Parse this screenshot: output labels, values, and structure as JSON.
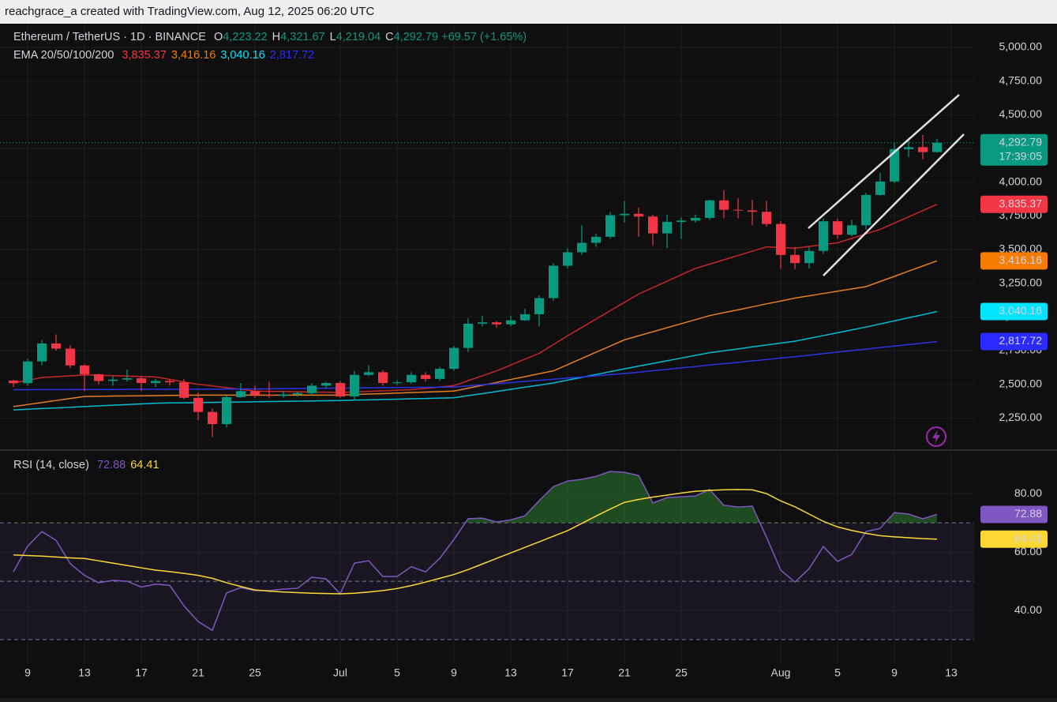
{
  "header": {
    "title": "reachgrace_a created with TradingView.com, Aug 12, 2025 06:20 UTC"
  },
  "chart_data": [
    {
      "type": "candlestick",
      "symbol": "Ethereum / TetherUS · 1D · BINANCE",
      "ohlc_legend": [
        {
          "key": "O",
          "text": "4,223.22"
        },
        {
          "key": "H",
          "text": "4,321.67"
        },
        {
          "key": "L",
          "text": "4,219.04"
        },
        {
          "key": "C",
          "text": "4,292.79"
        }
      ],
      "change": "+69.57 (+1.65%)",
      "countdown": "17:39:05",
      "categories": [
        null,
        "9",
        null,
        null,
        null,
        "13",
        null,
        null,
        null,
        "17",
        null,
        null,
        null,
        "21",
        null,
        null,
        null,
        "25",
        null,
        null,
        null,
        null,
        null,
        "Jul",
        null,
        null,
        null,
        "5",
        null,
        null,
        null,
        "9",
        null,
        null,
        null,
        "13",
        null,
        null,
        null,
        "17",
        null,
        null,
        null,
        "21",
        null,
        null,
        null,
        "25",
        null,
        null,
        null,
        null,
        null,
        null,
        "Aug",
        null,
        null,
        null,
        "5",
        null,
        null,
        null,
        "9",
        null,
        null,
        null,
        "13"
      ],
      "open": [
        2528,
        2509,
        2670,
        2803,
        2765,
        2640,
        2575,
        2525,
        2535,
        2545,
        2510,
        2525,
        2515,
        2400,
        2295,
        2205,
        2405,
        2450,
        2420,
        2415,
        2425,
        2435,
        2490,
        2510,
        2410,
        2570,
        2590,
        2510,
        2515,
        2570,
        2540,
        2615,
        2770,
        2950,
        2960,
        2945,
        2975,
        3020,
        3140,
        3380,
        3480,
        3550,
        3595,
        3755,
        3765,
        3745,
        3620,
        3705,
        3715,
        3735,
        3865,
        3795,
        3790,
        3780,
        3690,
        3460,
        3400,
        3490,
        3710,
        3610,
        3680,
        3905,
        4005,
        4245,
        4260,
        4223.22,
        null
      ],
      "high": [
        2535,
        2690,
        2827,
        2870,
        2790,
        2650,
        2580,
        2560,
        2610,
        2560,
        2540,
        2535,
        2540,
        2440,
        2320,
        2415,
        2510,
        2490,
        2520,
        2450,
        2445,
        2510,
        2520,
        2525,
        2600,
        2640,
        2605,
        2530,
        2590,
        2590,
        2630,
        2785,
        2990,
        3010,
        2970,
        3010,
        3060,
        3160,
        3400,
        3510,
        3680,
        3620,
        3780,
        3860,
        3810,
        3760,
        3760,
        3740,
        3760,
        3870,
        3940,
        3880,
        3870,
        3860,
        3710,
        3520,
        3520,
        3730,
        3730,
        3720,
        3920,
        4070,
        4290,
        4330,
        4350,
        4321.67,
        null
      ],
      "low": [
        2480,
        2490,
        2640,
        2750,
        2620,
        2450,
        2500,
        2490,
        2520,
        2450,
        2480,
        2490,
        2390,
        2235,
        2110,
        2180,
        2400,
        2400,
        2400,
        2400,
        2410,
        2420,
        2470,
        2400,
        2380,
        2560,
        2490,
        2495,
        2505,
        2520,
        2525,
        2600,
        2740,
        2930,
        2920,
        2930,
        2970,
        2930,
        3120,
        3360,
        3460,
        3520,
        3580,
        3700,
        3595,
        3530,
        3510,
        3580,
        3700,
        3720,
        3730,
        3730,
        3680,
        3670,
        3355,
        3355,
        3360,
        3470,
        3580,
        3600,
        3650,
        3900,
        3990,
        4185,
        4170,
        4219.04,
        null
      ],
      "close": [
        2509,
        2670,
        2803,
        2765,
        2640,
        2575,
        2525,
        2535,
        2545,
        2510,
        2525,
        2515,
        2400,
        2295,
        2205,
        2405,
        2450,
        2420,
        2415,
        2425,
        2435,
        2490,
        2510,
        2410,
        2570,
        2590,
        2510,
        2515,
        2570,
        2540,
        2615,
        2770,
        2950,
        2960,
        2945,
        2975,
        3020,
        3140,
        3380,
        3480,
        3550,
        3595,
        3755,
        3765,
        3745,
        3620,
        3705,
        3715,
        3735,
        3865,
        3795,
        3790,
        3780,
        3690,
        3460,
        3400,
        3490,
        3710,
        3610,
        3680,
        3905,
        4005,
        4245,
        4260,
        4223.22,
        4292.79,
        null
      ],
      "up_color": "#089981",
      "down_color": "#f23645",
      "indicator": "EMA 20/50/100/200",
      "series": [
        {
          "color": "#c62828",
          "badge_color": "#f23645",
          "last_label": "3,835.37",
          "values": [
            2510,
            2530,
            2550,
            2557,
            2563,
            2570,
            2567,
            2564,
            2561,
            2558,
            2555,
            2537,
            2518,
            2500,
            2488,
            2475,
            2463,
            2450,
            2448,
            2447,
            2445,
            2443,
            2442,
            2440,
            2444,
            2448,
            2452,
            2456,
            2460,
            2470,
            2480,
            2490,
            2527,
            2563,
            2600,
            2643,
            2687,
            2730,
            2795,
            2860,
            2922,
            2984,
            3046,
            3108,
            3170,
            3218,
            3265,
            3313,
            3360,
            3392,
            3424,
            3456,
            3488,
            3520,
            3515,
            3510,
            3523,
            3537,
            3550,
            3583,
            3617,
            3650,
            3696,
            3743,
            3789,
            3835.37,
            null
          ]
        },
        {
          "color": "#e67e22",
          "badge_color": "#f57c00",
          "last_label": "3,416.16",
          "values": [
            2335,
            2350,
            2365,
            2380,
            2395,
            2410,
            2411,
            2413,
            2414,
            2415,
            2416,
            2418,
            2419,
            2420,
            2420,
            2420,
            2420,
            2420,
            2420,
            2420,
            2420,
            2420,
            2420,
            2420,
            2424,
            2428,
            2431,
            2435,
            2439,
            2443,
            2446,
            2450,
            2471,
            2493,
            2514,
            2536,
            2557,
            2579,
            2600,
            2646,
            2692,
            2738,
            2784,
            2830,
            2860,
            2890,
            2920,
            2950,
            2980,
            3010,
            3032,
            3053,
            3075,
            3097,
            3118,
            3140,
            3157,
            3174,
            3191,
            3208,
            3225,
            3263,
            3301,
            3340,
            3378,
            3416.16,
            null
          ]
        },
        {
          "color": "#00bcd4",
          "badge_color": "#00e5ff",
          "last_label": "3,040.16",
          "values": [
            2310,
            2315,
            2320,
            2325,
            2330,
            2335,
            2340,
            2345,
            2350,
            2355,
            2360,
            2362,
            2363,
            2365,
            2366,
            2368,
            2369,
            2371,
            2372,
            2374,
            2375,
            2377,
            2378,
            2380,
            2383,
            2385,
            2388,
            2390,
            2393,
            2395,
            2398,
            2400,
            2416,
            2431,
            2447,
            2463,
            2479,
            2494,
            2510,
            2531,
            2552,
            2573,
            2594,
            2615,
            2635,
            2655,
            2675,
            2695,
            2715,
            2735,
            2749,
            2763,
            2778,
            2792,
            2806,
            2820,
            2841,
            2862,
            2883,
            2904,
            2925,
            2948,
            2971,
            2994,
            3017,
            3040.16,
            null
          ]
        },
        {
          "color": "#2b35e8",
          "badge_color": "#2b2bff",
          "last_label": "2,817.72",
          "values": [
            2460,
            2460,
            2461,
            2461,
            2461,
            2462,
            2462,
            2462,
            2463,
            2463,
            2463,
            2463,
            2464,
            2464,
            2464,
            2465,
            2465,
            2466,
            2467,
            2468,
            2469,
            2470,
            2471,
            2472,
            2473,
            2474,
            2475,
            2476,
            2477,
            2478,
            2479,
            2480,
            2488,
            2497,
            2505,
            2513,
            2522,
            2530,
            2538,
            2547,
            2555,
            2563,
            2572,
            2580,
            2590,
            2601,
            2611,
            2622,
            2632,
            2643,
            2653,
            2663,
            2674,
            2684,
            2695,
            2705,
            2716,
            2728,
            2739,
            2750,
            2761,
            2773,
            2784,
            2795,
            2806,
            2817.72,
            null
          ]
        }
      ],
      "ylim": [
        2012,
        5176
      ],
      "yticks": [
        {
          "value": 2250,
          "label": "2,250.00"
        },
        {
          "value": 2500,
          "label": "2,500.00"
        },
        {
          "value": 2750,
          "label": "2,750.00"
        },
        {
          "value": 3000,
          "label": "3,000.00"
        },
        {
          "value": 3250,
          "label": "3,250.00"
        },
        {
          "value": 3500,
          "label": "3,500.00"
        },
        {
          "value": 3750,
          "label": "3,750.00"
        },
        {
          "value": 4000,
          "label": "4,000.00"
        },
        {
          "value": 4250,
          "label": "4,250.00"
        },
        {
          "value": 4500,
          "label": "4,500.00"
        },
        {
          "value": 4750,
          "label": "4,750.00"
        },
        {
          "value": 5000,
          "label": "5,000.00"
        }
      ],
      "grid": true
    },
    {
      "type": "line",
      "title": "RSI (14, close)",
      "series": [
        {
          "color": "#7e57c2",
          "last_label": "72.88",
          "values": [
            53.2,
            62,
            67,
            64,
            56,
            52,
            49.5,
            50.3,
            50,
            48,
            49,
            48.6,
            41.6,
            36.2,
            33.2,
            46,
            47.8,
            46.8,
            46.8,
            47.3,
            47.6,
            51.4,
            50.8,
            45.7,
            56.2,
            57,
            51.6,
            51.6,
            55,
            53.2,
            57.8,
            64.3,
            71.4,
            71.6,
            70.3,
            71,
            72.4,
            77.6,
            82.4,
            84.3,
            84.9,
            85.9,
            87.6,
            87.3,
            86.2,
            76.8,
            78.6,
            78.9,
            79.2,
            81.4,
            76,
            75.4,
            75.7,
            65.1,
            53.8,
            49.7,
            54.3,
            61.9,
            56.8,
            59.2,
            67,
            68.1,
            73.5,
            73,
            71.4,
            72.88,
            null
          ]
        },
        {
          "color": "#fdd835",
          "last_label": "64.41",
          "values": [
            59,
            58.8,
            58.6,
            58.3,
            58,
            57.8,
            57,
            56.2,
            55.4,
            54.6,
            53.8,
            53.3,
            52.7,
            52,
            51,
            49.5,
            48.2,
            47,
            46.6,
            46.3,
            46.1,
            45.9,
            45.8,
            45.7,
            45.9,
            46.3,
            46.8,
            47.5,
            48.5,
            49.7,
            51,
            52.3,
            54,
            55.9,
            57.8,
            59.7,
            61.6,
            63.5,
            65.4,
            67.3,
            69.8,
            72.3,
            74.7,
            77,
            78,
            78.8,
            79.5,
            80.2,
            80.8,
            81.1,
            81.3,
            81.4,
            81.3,
            80,
            77.5,
            75.5,
            73,
            70.5,
            68.6,
            67.4,
            66.4,
            65.6,
            65.2,
            64.9,
            64.6,
            64.41,
            null
          ]
        }
      ],
      "levels": [
        70,
        50,
        30
      ],
      "overbought_color": "#2e7d32",
      "ylim": [
        21.9,
        94.9
      ],
      "yticks": [
        {
          "value": 40,
          "label": "40.00"
        },
        {
          "value": 60,
          "label": "60.00"
        },
        {
          "value": 80,
          "label": "80.00"
        }
      ],
      "grid": true
    }
  ]
}
